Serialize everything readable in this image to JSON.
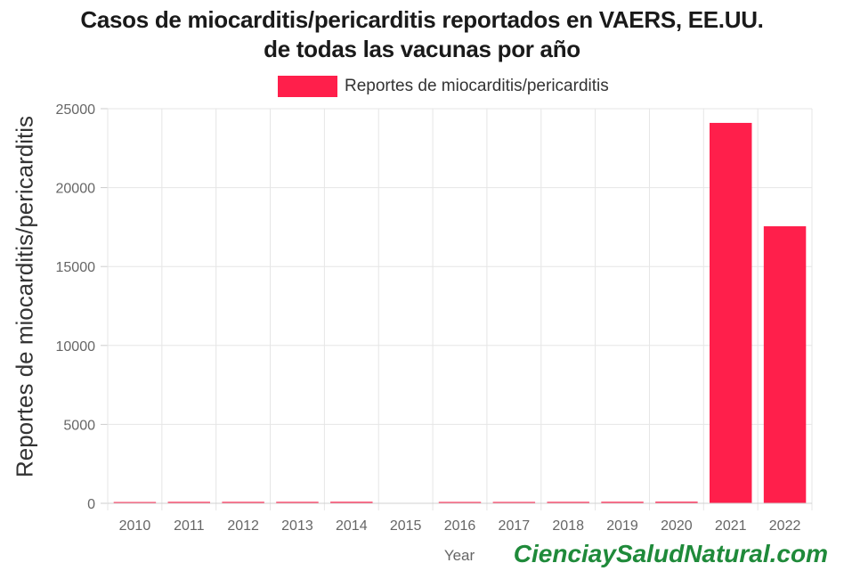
{
  "chart_data": {
    "type": "bar",
    "title": "Casos de miocarditis/pericarditis reportados en VAERS, EE.UU.",
    "subtitle": "de todas las vacunas por año",
    "xlabel": "Year",
    "ylabel": "Reportes de miocarditis/pericarditis",
    "categories": [
      "2010",
      "2011",
      "2012",
      "2013",
      "2014",
      "2015",
      "2016",
      "2017",
      "2018",
      "2019",
      "2020",
      "2021",
      "2022"
    ],
    "series": [
      {
        "name": "Reportes de miocarditis/pericarditis",
        "values": [
          80,
          90,
          90,
          90,
          95,
          20,
          85,
          85,
          90,
          95,
          100,
          24100,
          17550
        ]
      }
    ],
    "ylim": [
      0,
      25000
    ],
    "yticks": [
      "0",
      "5000",
      "10000",
      "15000",
      "20000",
      "25000"
    ],
    "grid": true,
    "legend_position": "top",
    "bar_color": "#ff1f4b"
  },
  "watermark": "CienciaySaludNatural.com"
}
